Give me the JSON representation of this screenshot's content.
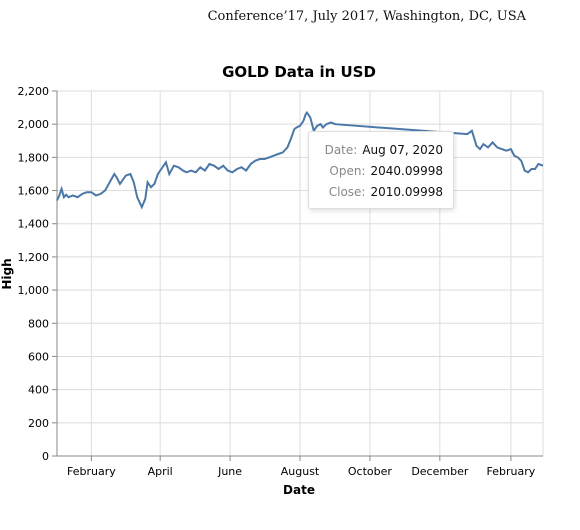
{
  "header": {
    "venue": "Conference’17, July 2017, Washington, DC, USA"
  },
  "tooltip": {
    "rows": [
      {
        "key": "Date:",
        "value": "Aug 07, 2020"
      },
      {
        "key": "Open:",
        "value": "2040.09998"
      },
      {
        "key": "Close:",
        "value": "2010.09998"
      }
    ]
  },
  "chart_data": {
    "type": "line",
    "title": "GOLD Data in USD",
    "xlabel": "Date",
    "ylabel": "High",
    "ylim": [
      0,
      2200
    ],
    "yticks": [
      0,
      200,
      400,
      600,
      800,
      1000,
      1200,
      1400,
      1600,
      1800,
      2000,
      2200
    ],
    "ytick_labels": [
      "0",
      "200",
      "400",
      "600",
      "800",
      "1,000",
      "1,200",
      "1,400",
      "1,600",
      "1,800",
      "2,000",
      "2,200"
    ],
    "xlim": [
      "2020-01-02",
      "2021-03-01"
    ],
    "xticks": [
      "2020-02-01",
      "2020-04-01",
      "2020-06-01",
      "2020-08-01",
      "2020-10-01",
      "2020-12-01",
      "2021-02-01"
    ],
    "xtick_labels": [
      "February",
      "April",
      "June",
      "August",
      "October",
      "December",
      "February"
    ],
    "grid": true,
    "line_color": "#4c78a8",
    "series": [
      {
        "x": [
          "2020-01-02",
          "2020-01-04",
          "2020-01-06",
          "2020-01-08",
          "2020-01-10",
          "2020-01-12",
          "2020-01-16",
          "2020-01-20",
          "2020-01-24",
          "2020-01-28",
          "2020-02-01",
          "2020-02-05",
          "2020-02-09",
          "2020-02-13",
          "2020-02-17",
          "2020-02-21",
          "2020-02-23",
          "2020-02-26",
          "2020-03-02",
          "2020-03-06",
          "2020-03-09",
          "2020-03-12",
          "2020-03-16",
          "2020-03-19",
          "2020-03-21",
          "2020-03-24",
          "2020-03-27",
          "2020-03-30",
          "2020-04-02",
          "2020-04-06",
          "2020-04-09",
          "2020-04-13",
          "2020-04-17",
          "2020-04-21",
          "2020-04-24",
          "2020-04-28",
          "2020-05-02",
          "2020-05-06",
          "2020-05-10",
          "2020-05-14",
          "2020-05-18",
          "2020-05-22",
          "2020-05-26",
          "2020-05-30",
          "2020-06-03",
          "2020-06-07",
          "2020-06-11",
          "2020-06-15",
          "2020-06-19",
          "2020-06-23",
          "2020-06-27",
          "2020-07-01",
          "2020-07-05",
          "2020-07-09",
          "2020-07-13",
          "2020-07-17",
          "2020-07-21",
          "2020-07-24",
          "2020-07-27",
          "2020-07-29",
          "2020-08-01",
          "2020-08-04",
          "2020-08-06",
          "2020-08-07",
          "2020-08-10",
          "2020-08-13",
          "2020-08-16",
          "2020-08-19",
          "2020-08-21",
          "2020-08-24",
          "2020-08-28",
          "2020-09-01",
          "2020-12-25",
          "2020-12-29",
          "2021-01-02",
          "2021-01-05",
          "2021-01-08",
          "2021-01-12",
          "2021-01-16",
          "2021-01-20",
          "2021-01-24",
          "2021-01-28",
          "2021-02-01",
          "2021-02-04",
          "2021-02-07",
          "2021-02-10",
          "2021-02-13",
          "2021-02-16",
          "2021-02-19",
          "2021-02-22",
          "2021-02-25",
          "2021-03-01"
        ],
        "y": [
          1540,
          1570,
          1610,
          1560,
          1575,
          1560,
          1570,
          1560,
          1580,
          1590,
          1590,
          1570,
          1580,
          1600,
          1650,
          1700,
          1680,
          1640,
          1690,
          1700,
          1650,
          1560,
          1500,
          1550,
          1650,
          1620,
          1640,
          1700,
          1730,
          1770,
          1700,
          1750,
          1740,
          1720,
          1710,
          1720,
          1710,
          1740,
          1720,
          1760,
          1750,
          1730,
          1750,
          1720,
          1710,
          1730,
          1740,
          1720,
          1760,
          1780,
          1790,
          1790,
          1800,
          1810,
          1820,
          1830,
          1860,
          1910,
          1970,
          1980,
          1990,
          2020,
          2060,
          2070,
          2040,
          1960,
          1990,
          2000,
          1980,
          2000,
          2010,
          2000,
          1940,
          1960,
          1870,
          1850,
          1880,
          1860,
          1890,
          1860,
          1850,
          1840,
          1850,
          1810,
          1800,
          1780,
          1720,
          1710,
          1730,
          1730,
          1760,
          1750
        ]
      }
    ]
  }
}
